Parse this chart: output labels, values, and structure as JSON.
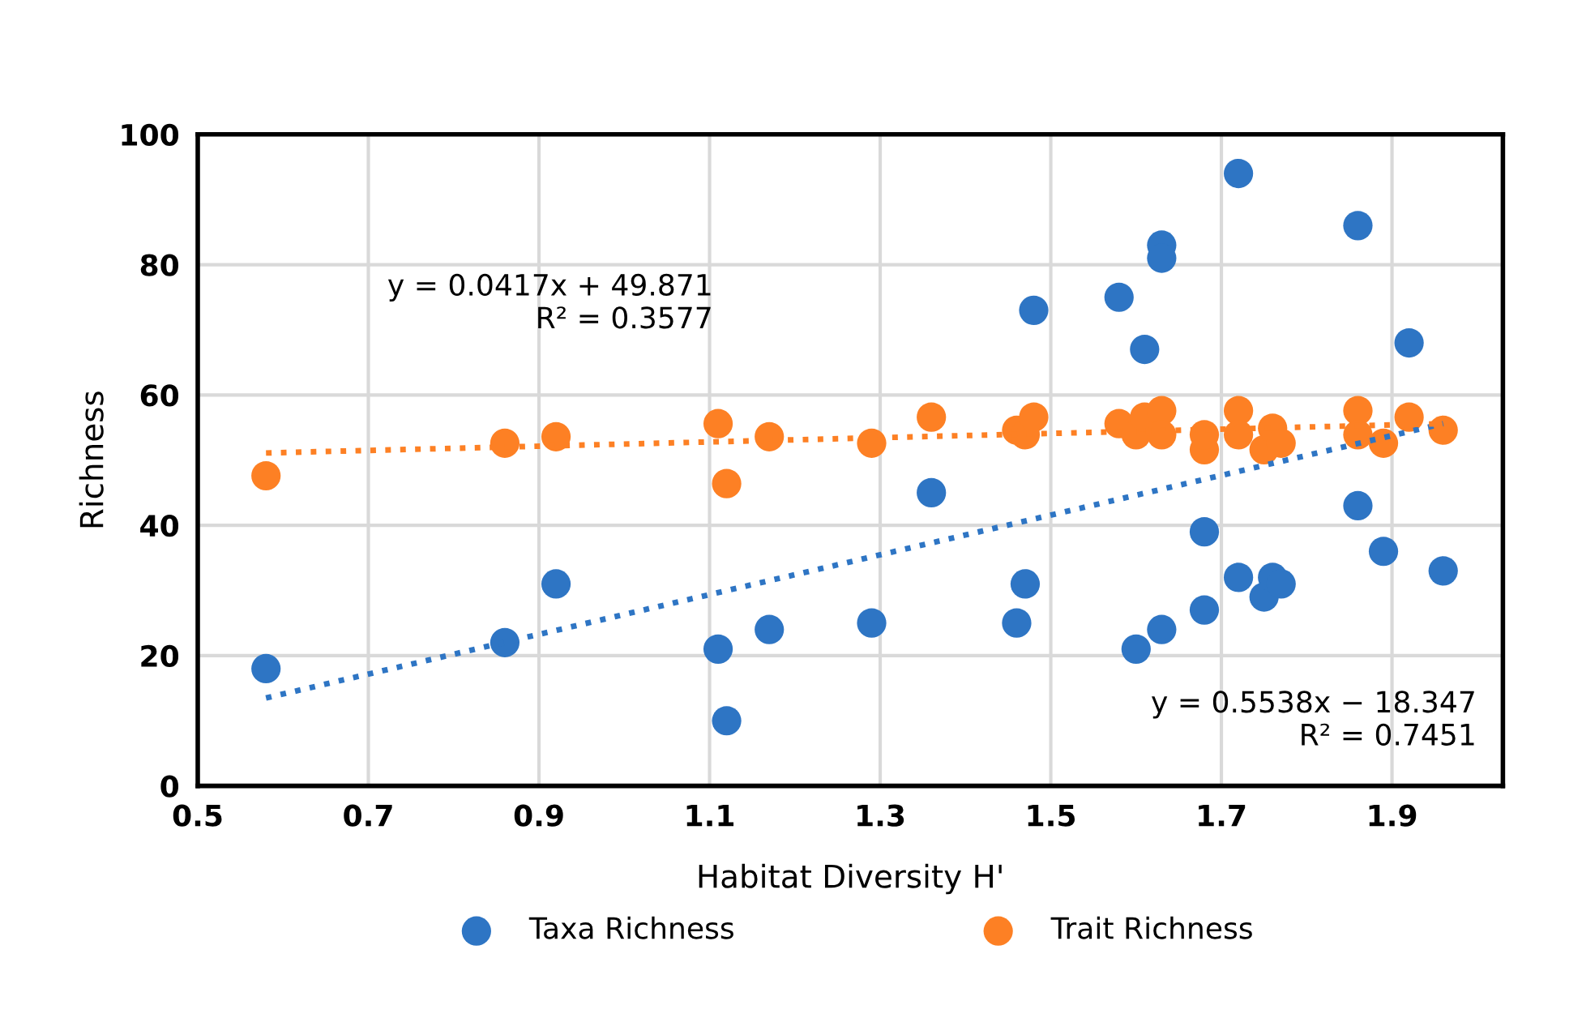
{
  "chart_data": {
    "type": "scatter",
    "xlabel": "Habitat Diversity H'",
    "ylabel": "Richness",
    "xlim": [
      0.5,
      2.03
    ],
    "xticks": [
      0.5,
      0.7,
      0.9,
      1.1,
      1.3,
      1.5,
      1.7,
      1.9
    ],
    "ylim": [
      0,
      100
    ],
    "yticks": [
      0,
      20,
      40,
      60,
      80,
      100
    ],
    "grid": true,
    "legend": "bottom",
    "marker": "circle",
    "series": [
      {
        "name": "Taxa Richness",
        "color": "#2e75c4",
        "x": [
          0.58,
          0.86,
          0.92,
          1.11,
          1.12,
          1.17,
          1.29,
          1.36,
          1.46,
          1.47,
          1.48,
          1.58,
          1.61,
          1.6,
          1.63,
          1.63,
          1.63,
          1.68,
          1.68,
          1.72,
          1.72,
          1.75,
          1.76,
          1.77,
          1.86,
          1.86,
          1.89,
          1.92,
          1.96
        ],
        "values": [
          18,
          22,
          31,
          21,
          10,
          24,
          25,
          45,
          25,
          31,
          73,
          75,
          67,
          21,
          83,
          81,
          24,
          27,
          39,
          94,
          32,
          29,
          32,
          31,
          86,
          43,
          36,
          68,
          33
        ]
      },
      {
        "name": "Trait Richness",
        "color": "#fd8024",
        "x": [
          0.58,
          0.86,
          0.92,
          1.11,
          1.12,
          1.17,
          1.29,
          1.36,
          1.46,
          1.47,
          1.48,
          1.58,
          1.6,
          1.61,
          1.63,
          1.63,
          1.68,
          1.68,
          1.72,
          1.72,
          1.75,
          1.76,
          1.77,
          1.86,
          1.86,
          1.89,
          1.92,
          1.96
        ],
        "values": [
          47.6,
          52.6,
          53.6,
          55.6,
          46.4,
          53.6,
          52.6,
          56.6,
          54.6,
          53.9,
          56.6,
          55.6,
          53.9,
          56.6,
          57.6,
          53.9,
          51.6,
          53.9,
          57.6,
          53.9,
          51.6,
          54.9,
          52.6,
          57.6,
          53.9,
          52.6,
          56.6,
          54.6
        ]
      },
      {
        "color": "#2e75c4",
        "type": "line",
        "marker": "none",
        "line_style": "dotted",
        "x": [
          0.58,
          1.96
        ],
        "values": [
          13.5,
          55.6
        ]
      },
      {
        "color": "#fd8024",
        "type": "line",
        "marker": "none",
        "line_style": "dotted",
        "x": [
          0.58,
          1.96
        ],
        "values": [
          51.1,
          55.6
        ]
      }
    ],
    "annotations": [
      "y = 0.0417x + 49.871\nR² = 0.3577",
      "y = 0.5538x − 18.347\nR² = 0.7451"
    ]
  }
}
